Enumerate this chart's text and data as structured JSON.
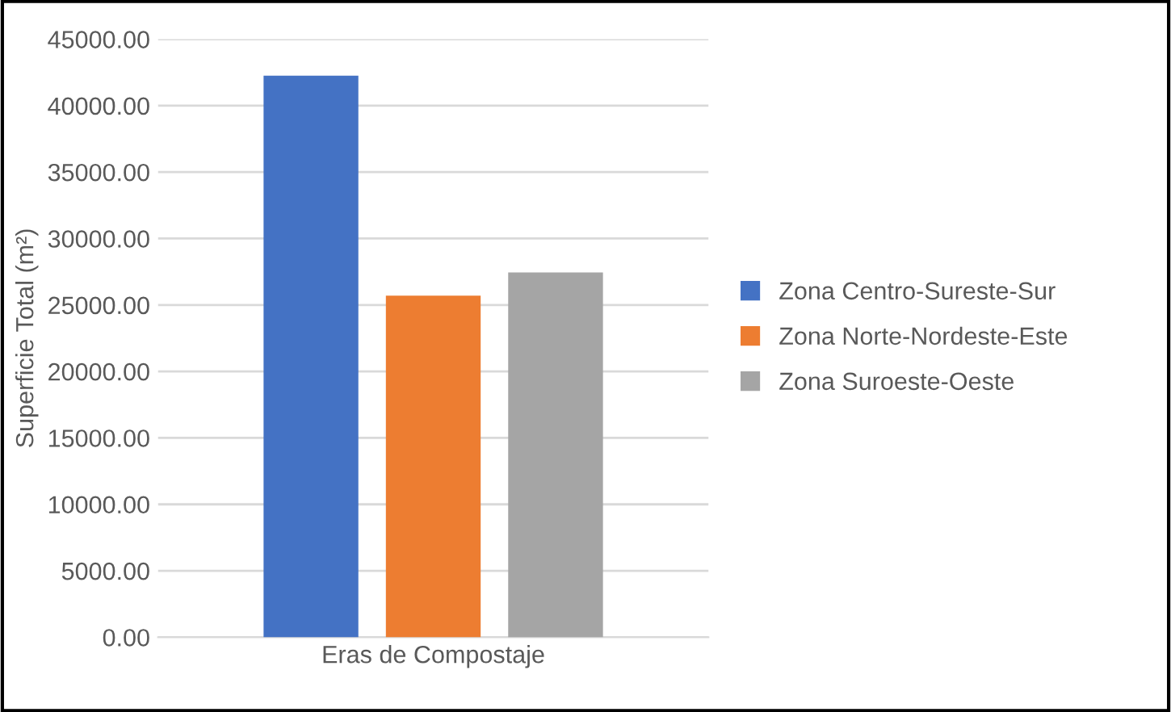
{
  "chart_data": {
    "type": "bar",
    "ylabel": "Superficie Total (m²)",
    "categories": [
      "Eras de Compostaje"
    ],
    "series": [
      {
        "name": "Zona Centro-Sureste-Sur",
        "color": "#4472c4",
        "values": [
          42250
        ]
      },
      {
        "name": "Zona Norte-Nordeste-Este",
        "color": "#ed7d31",
        "values": [
          25700
        ]
      },
      {
        "name": "Zona Suroeste-Oeste",
        "color": "#a5a5a5",
        "values": [
          27450
        ]
      }
    ],
    "ylim": [
      0,
      45000
    ],
    "yticks": [
      {
        "value": 0,
        "label": "0.00"
      },
      {
        "value": 5000,
        "label": "5000.00"
      },
      {
        "value": 10000,
        "label": "10000.00"
      },
      {
        "value": 15000,
        "label": "15000.00"
      },
      {
        "value": 20000,
        "label": "20000.00"
      },
      {
        "value": 25000,
        "label": "25000.00"
      },
      {
        "value": 30000,
        "label": "30000.00"
      },
      {
        "value": 35000,
        "label": "35000.00"
      },
      {
        "value": 40000,
        "label": "40000.00"
      },
      {
        "value": 45000,
        "label": "45000.00"
      }
    ],
    "grid": "y",
    "legend": "right"
  }
}
